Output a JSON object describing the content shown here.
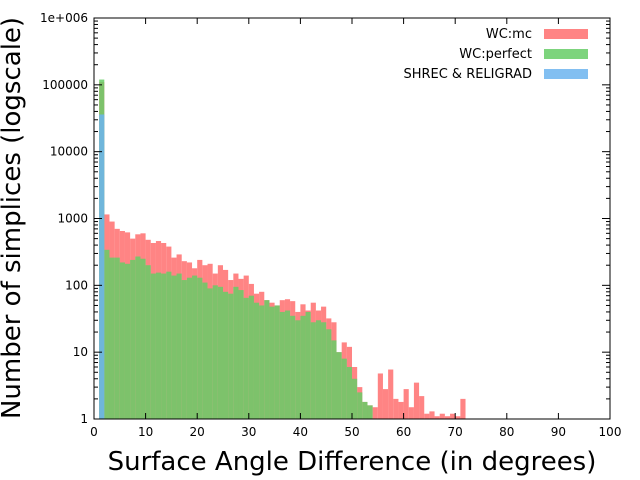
{
  "chart_data": {
    "type": "bar",
    "title": "",
    "xlabel": "Surface Angle Difference (in degrees)",
    "ylabel": "Number of simplices (logscale)",
    "x_scale": "linear",
    "y_scale": "log",
    "xlim": [
      0,
      100
    ],
    "ylim": [
      1,
      1000000
    ],
    "grid": false,
    "legend_position": "top-right",
    "x_ticks": [
      {
        "value": 0,
        "label": "0"
      },
      {
        "value": 10,
        "label": "10"
      },
      {
        "value": 20,
        "label": "20"
      },
      {
        "value": 30,
        "label": "30"
      },
      {
        "value": 40,
        "label": "40"
      },
      {
        "value": 50,
        "label": "50"
      },
      {
        "value": 60,
        "label": "60"
      },
      {
        "value": 70,
        "label": "70"
      },
      {
        "value": 80,
        "label": "80"
      },
      {
        "value": 90,
        "label": "90"
      },
      {
        "value": 100,
        "label": "100"
      }
    ],
    "y_ticks": [
      {
        "value": 1,
        "label": "1"
      },
      {
        "value": 10,
        "label": "10"
      },
      {
        "value": 100,
        "label": "100"
      },
      {
        "value": 1000,
        "label": "1000"
      },
      {
        "value": 10000,
        "label": "10000"
      },
      {
        "value": 100000,
        "label": "100000"
      },
      {
        "value": 1000000,
        "label": "1e+006"
      }
    ],
    "series": [
      {
        "name": "WC:mc",
        "color": "#ff6e6e",
        "opacity": 0.85,
        "bin_width": 1,
        "bins": [
          [
            1,
            110000
          ],
          [
            2,
            1150
          ],
          [
            3,
            900
          ],
          [
            4,
            700
          ],
          [
            5,
            650
          ],
          [
            6,
            620
          ],
          [
            7,
            500
          ],
          [
            8,
            580
          ],
          [
            9,
            600
          ],
          [
            10,
            480
          ],
          [
            11,
            430
          ],
          [
            12,
            460
          ],
          [
            13,
            430
          ],
          [
            14,
            380
          ],
          [
            15,
            260
          ],
          [
            16,
            290
          ],
          [
            17,
            230
          ],
          [
            18,
            220
          ],
          [
            19,
            180
          ],
          [
            20,
            240
          ],
          [
            21,
            200
          ],
          [
            22,
            210
          ],
          [
            23,
            150
          ],
          [
            24,
            200
          ],
          [
            25,
            170
          ],
          [
            26,
            120
          ],
          [
            27,
            150
          ],
          [
            28,
            125
          ],
          [
            29,
            140
          ],
          [
            30,
            105
          ],
          [
            31,
            75
          ],
          [
            32,
            80
          ],
          [
            33,
            60
          ],
          [
            34,
            55
          ],
          [
            35,
            50
          ],
          [
            36,
            60
          ],
          [
            37,
            62
          ],
          [
            38,
            58
          ],
          [
            39,
            40
          ],
          [
            40,
            52
          ],
          [
            41,
            42
          ],
          [
            42,
            55
          ],
          [
            43,
            42
          ],
          [
            44,
            48
          ],
          [
            45,
            32
          ],
          [
            46,
            28
          ],
          [
            47,
            10
          ],
          [
            48,
            14
          ],
          [
            49,
            12
          ],
          [
            50,
            6
          ],
          [
            51,
            3
          ],
          [
            52,
            1.8
          ],
          [
            53,
            1.6
          ],
          [
            54,
            1.5
          ],
          [
            55,
            4.8
          ],
          [
            56,
            2.8
          ],
          [
            57,
            5.5
          ],
          [
            58,
            2
          ],
          [
            59,
            1.8
          ],
          [
            60,
            2.8
          ],
          [
            61,
            1.5
          ],
          [
            62,
            3.5
          ],
          [
            63,
            2.2
          ],
          [
            64,
            1.2
          ],
          [
            65,
            1.3
          ],
          [
            66,
            1.1
          ],
          [
            67,
            1.2
          ],
          [
            68,
            1.1
          ],
          [
            69,
            1.2
          ],
          [
            70,
            1.1
          ],
          [
            71,
            2
          ],
          [
            72,
            1
          ]
        ]
      },
      {
        "name": "WC:perfect",
        "color": "#66cc66",
        "opacity": 0.85,
        "bin_width": 1,
        "bins": [
          [
            1,
            120000
          ],
          [
            2,
            340
          ],
          [
            3,
            260
          ],
          [
            4,
            260
          ],
          [
            5,
            220
          ],
          [
            6,
            210
          ],
          [
            7,
            240
          ],
          [
            8,
            270
          ],
          [
            9,
            250
          ],
          [
            10,
            200
          ],
          [
            11,
            150
          ],
          [
            12,
            155
          ],
          [
            13,
            150
          ],
          [
            14,
            160
          ],
          [
            15,
            140
          ],
          [
            16,
            150
          ],
          [
            17,
            120
          ],
          [
            18,
            130
          ],
          [
            19,
            140
          ],
          [
            20,
            130
          ],
          [
            21,
            110
          ],
          [
            22,
            90
          ],
          [
            23,
            100
          ],
          [
            24,
            95
          ],
          [
            25,
            80
          ],
          [
            26,
            75
          ],
          [
            27,
            95
          ],
          [
            28,
            85
          ],
          [
            29,
            65
          ],
          [
            30,
            70
          ],
          [
            31,
            55
          ],
          [
            32,
            50
          ],
          [
            33,
            60
          ],
          [
            34,
            48
          ],
          [
            35,
            50
          ],
          [
            36,
            40
          ],
          [
            37,
            42
          ],
          [
            38,
            35
          ],
          [
            39,
            30
          ],
          [
            40,
            35
          ],
          [
            41,
            40
          ],
          [
            42,
            28
          ],
          [
            43,
            30
          ],
          [
            44,
            28
          ],
          [
            45,
            22
          ],
          [
            46,
            15
          ],
          [
            47,
            10
          ],
          [
            48,
            8
          ],
          [
            49,
            6
          ],
          [
            50,
            4
          ],
          [
            51,
            2.5
          ],
          [
            52,
            1.8
          ],
          [
            53,
            1.6
          ]
        ]
      },
      {
        "name": "SHREC & RELIGRAD",
        "color": "#6cb4ee",
        "opacity": 0.85,
        "bin_width": 1,
        "bins": [
          [
            1,
            36000
          ]
        ]
      }
    ]
  }
}
